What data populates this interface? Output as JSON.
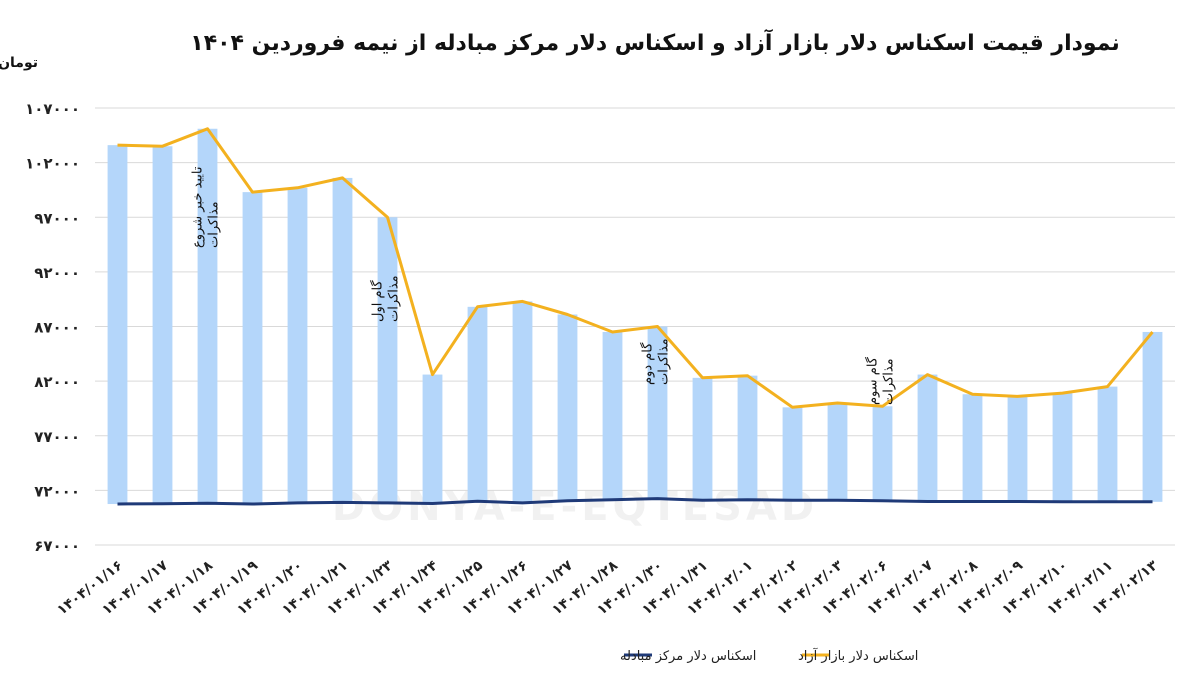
{
  "chart_data": {
    "type": "bar",
    "title": "نمودار قیمت اسکناس دلار بازار آزاد و اسکناس دلار مرکز مبادله از نیمه فروردین ۱۴۰۴",
    "ylabel": "تومان",
    "ylim": [
      67000,
      107000
    ],
    "yticks": [
      "۶۷۰۰۰",
      "۷۲۰۰۰",
      "۷۷۰۰۰",
      "۸۲۰۰۰",
      "۸۷۰۰۰",
      "۹۲۰۰۰",
      "۹۷۰۰۰",
      "۱۰۲۰۰۰",
      "۱۰۷۰۰۰"
    ],
    "ytick_values": [
      67000,
      72000,
      77000,
      82000,
      87000,
      92000,
      97000,
      102000,
      107000
    ],
    "grid": true,
    "legend_position": "bottom",
    "categories": [
      "۱۴۰۴/۰۱/۱۶",
      "۱۴۰۴/۰۱/۱۷",
      "۱۴۰۴/۰۱/۱۸",
      "۱۴۰۴/۰۱/۱۹",
      "۱۴۰۴/۰۱/۲۰",
      "۱۴۰۴/۰۱/۲۱",
      "۱۴۰۴/۰۱/۲۳",
      "۱۴۰۴/۰۱/۲۴",
      "۱۴۰۴/۰۱/۲۵",
      "۱۴۰۴/۰۱/۲۶",
      "۱۴۰۴/۰۱/۲۷",
      "۱۴۰۴/۰۱/۲۸",
      "۱۴۰۴/۰۱/۳۰",
      "۱۴۰۴/۰۱/۳۱",
      "۱۴۰۴/۰۲/۰۱",
      "۱۴۰۴/۰۲/۰۲",
      "۱۴۰۴/۰۲/۰۳",
      "۱۴۰۴/۰۲/۰۶",
      "۱۴۰۴/۰۲/۰۷",
      "۱۴۰۴/۰۲/۰۸",
      "۱۴۰۴/۰۲/۰۹",
      "۱۴۰۴/۰۲/۱۰",
      "۱۴۰۴/۰۲/۱۱",
      "۱۴۰۴/۰۲/۱۳"
    ],
    "series": [
      {
        "name": "اسکناس دلار بازار آزاد",
        "render": "bar+line",
        "color": "#f3b11f",
        "bar_color": "#b4d6fa",
        "values": [
          103600,
          103500,
          105100,
          99300,
          99700,
          100600,
          97000,
          82600,
          88800,
          89300,
          88100,
          86500,
          87000,
          82300,
          82500,
          79600,
          80000,
          79700,
          82600,
          80800,
          80600,
          80900,
          81500,
          86500
        ]
      },
      {
        "name": "اسکناس دلار مرکز مبادله",
        "render": "line",
        "color": "#1f3a78",
        "values": [
          70750,
          70780,
          70820,
          70750,
          70850,
          70900,
          70850,
          70800,
          71000,
          70850,
          71050,
          71150,
          71250,
          71100,
          71150,
          71100,
          71100,
          71050,
          70980,
          70980,
          70980,
          70950,
          70950,
          70950
        ]
      }
    ],
    "annotations": [
      {
        "category_index": 2,
        "lines": [
          "تایید خبر شروع",
          "مذاکرات"
        ]
      },
      {
        "category_index": 6,
        "lines": [
          "گام اول",
          "مذاکرات"
        ]
      },
      {
        "category_index": 12,
        "lines": [
          "گام دوم",
          "مذاکرات"
        ]
      },
      {
        "category_index": 17,
        "lines": [
          "گام سوم",
          "مذاکرات"
        ]
      }
    ]
  },
  "watermark": {
    "text": "DONYA-E-EQTESAD"
  }
}
